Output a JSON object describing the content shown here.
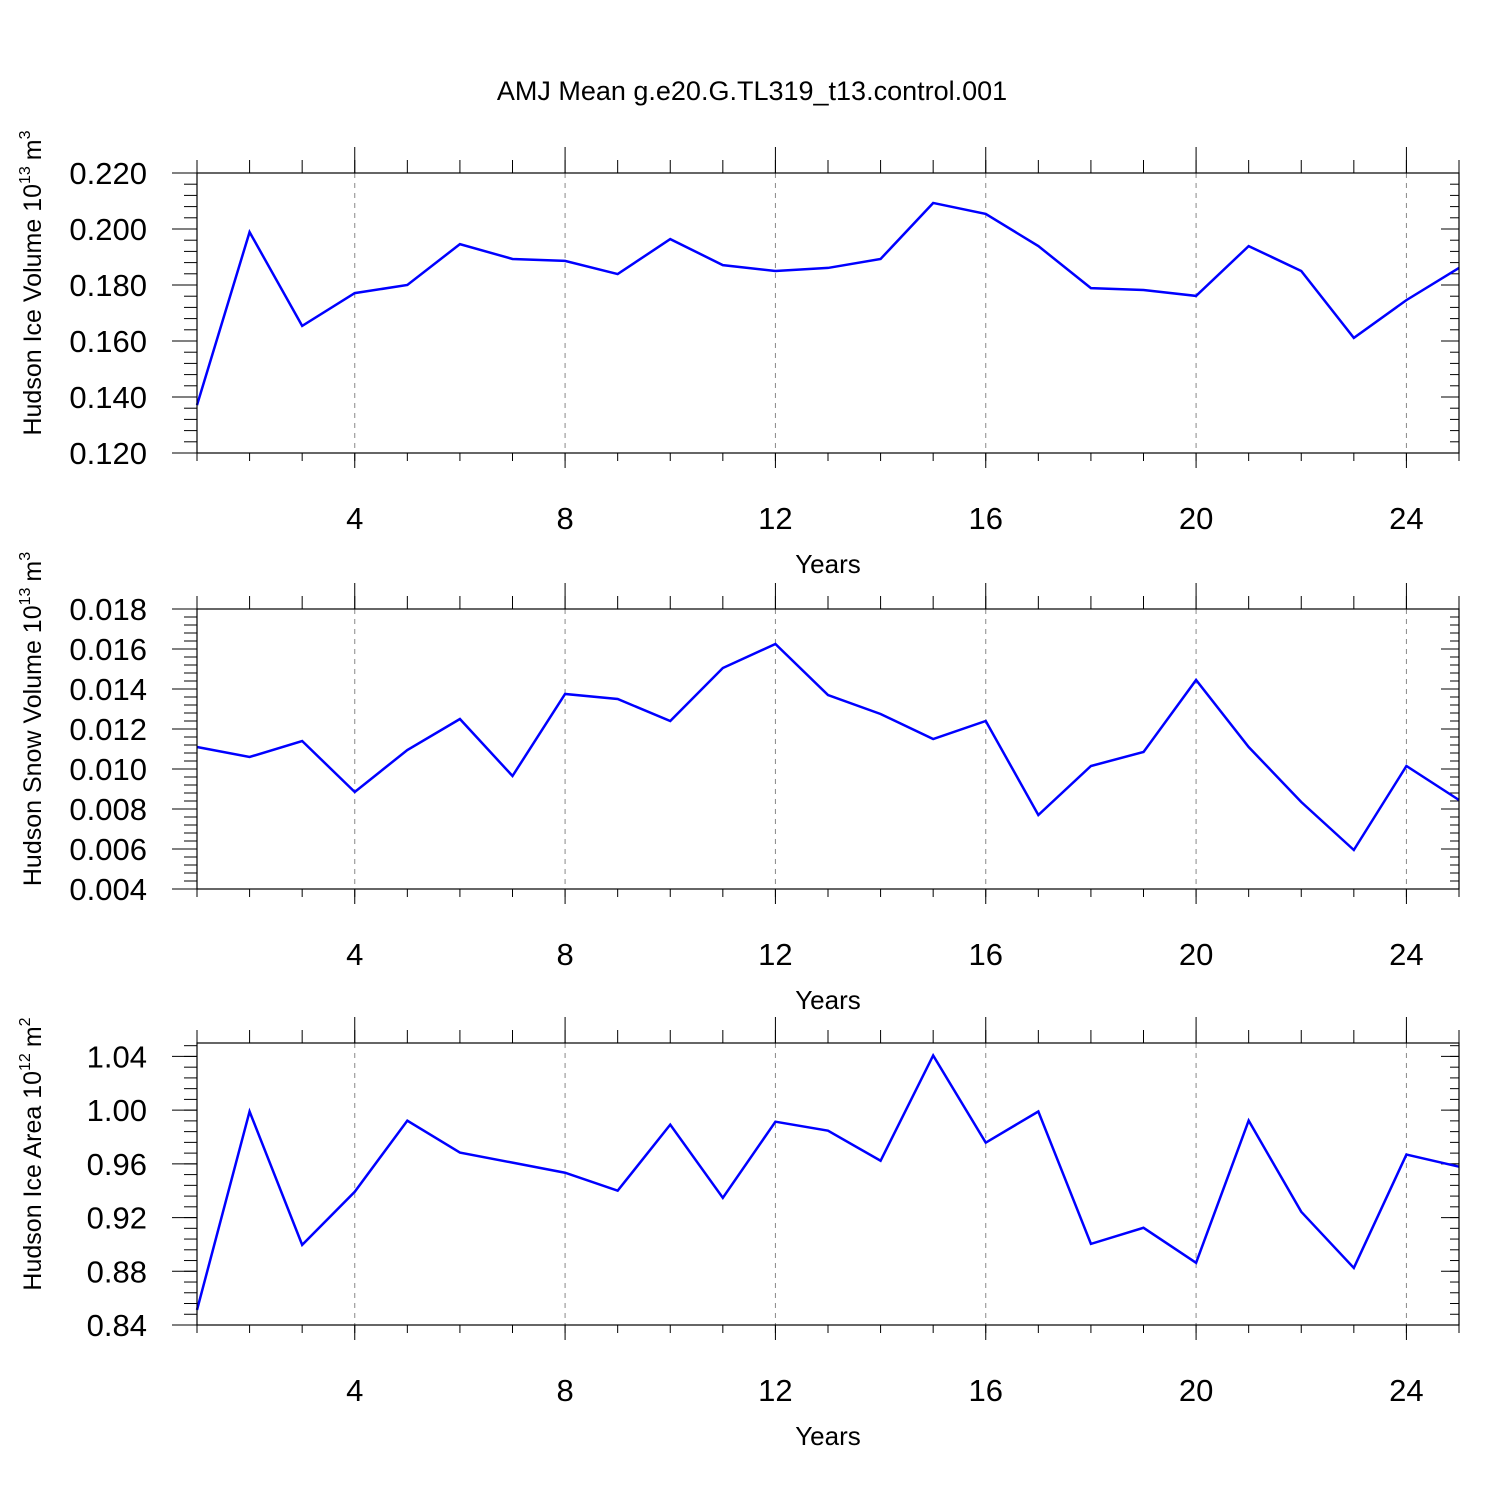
{
  "chart_data": [
    {
      "type": "line",
      "title": "AMJ Mean g.e20.G.TL319_t13.control.001",
      "ylabel": "Hudson Ice Volume 10",
      "ylabel_power": "13",
      "ylabel_unit": "m",
      "ylabel_unit_power": "3",
      "xlabel": "Years",
      "x": [
        1,
        2,
        3,
        4,
        5,
        6,
        7,
        8,
        9,
        10,
        11,
        12,
        13,
        14,
        15,
        16,
        17,
        18,
        19,
        20,
        21,
        22,
        23,
        24,
        25
      ],
      "series": [
        {
          "color": "#0000ff",
          "values": [
            0.1371,
            0.1989,
            0.1654,
            0.1771,
            0.18,
            0.1946,
            0.1893,
            0.1886,
            0.1839,
            0.1964,
            0.1871,
            0.185,
            0.1861,
            0.1893,
            0.2093,
            0.2054,
            0.1939,
            0.1789,
            0.1782,
            0.1761,
            0.1939,
            0.185,
            0.1611,
            0.1746,
            0.1861
          ]
        }
      ],
      "xlim": [
        1,
        25
      ],
      "xticks": [
        4,
        8,
        12,
        16,
        20,
        24
      ],
      "ylim": [
        0.12,
        0.22
      ],
      "yticks": [
        {
          "value": 0.12,
          "label": "0.120"
        },
        {
          "value": 0.14,
          "label": "0.140"
        },
        {
          "value": 0.16,
          "label": "0.160"
        },
        {
          "value": 0.18,
          "label": "0.180"
        },
        {
          "value": 0.2,
          "label": "0.200"
        },
        {
          "value": 0.22,
          "label": "0.220"
        }
      ],
      "grid": true
    },
    {
      "type": "line",
      "ylabel": "Hudson Snow Volume 10",
      "ylabel_power": "13",
      "ylabel_unit": "m",
      "ylabel_unit_power": "3",
      "xlabel": "Years",
      "x": [
        1,
        2,
        3,
        4,
        5,
        6,
        7,
        8,
        9,
        10,
        11,
        12,
        13,
        14,
        15,
        16,
        17,
        18,
        19,
        20,
        21,
        22,
        23,
        24,
        25
      ],
      "series": [
        {
          "color": "#0000ff",
          "values": [
            0.0111,
            0.0106,
            0.0114,
            0.00885,
            0.01095,
            0.0125,
            0.00965,
            0.01375,
            0.0135,
            0.0124,
            0.01505,
            0.01625,
            0.0137,
            0.01275,
            0.0115,
            0.0124,
            0.0077,
            0.01015,
            0.01085,
            0.01445,
            0.0111,
            0.00835,
            0.00595,
            0.01015,
            0.00845
          ]
        }
      ],
      "xlim": [
        1,
        25
      ],
      "xticks": [
        4,
        8,
        12,
        16,
        20,
        24
      ],
      "ylim": [
        0.004,
        0.018
      ],
      "yticks": [
        {
          "value": 0.004,
          "label": "0.004"
        },
        {
          "value": 0.006,
          "label": "0.006"
        },
        {
          "value": 0.008,
          "label": "0.008"
        },
        {
          "value": 0.01,
          "label": "0.010"
        },
        {
          "value": 0.012,
          "label": "0.012"
        },
        {
          "value": 0.014,
          "label": "0.014"
        },
        {
          "value": 0.016,
          "label": "0.016"
        },
        {
          "value": 0.018,
          "label": "0.018"
        }
      ],
      "grid": true
    },
    {
      "type": "line",
      "ylabel": "Hudson Ice Area 10",
      "ylabel_power": "12",
      "ylabel_unit": "m",
      "ylabel_unit_power": "2",
      "xlabel": "Years",
      "x": [
        1,
        2,
        3,
        4,
        5,
        6,
        7,
        8,
        9,
        10,
        11,
        12,
        13,
        14,
        15,
        16,
        17,
        18,
        19,
        20,
        21,
        22,
        23,
        24,
        25
      ],
      "series": [
        {
          "color": "#0000ff",
          "values": [
            0.8512,
            0.999,
            0.8997,
            0.9392,
            0.9922,
            0.9684,
            0.9609,
            0.9534,
            0.94,
            0.9892,
            0.9347,
            0.9914,
            0.9847,
            0.9623,
            1.0407,
            0.9758,
            0.999,
            0.9004,
            0.9124,
            0.8863,
            0.9922,
            0.9243,
            0.8825,
            0.9669,
            0.9579
          ]
        }
      ],
      "xlim": [
        1,
        25
      ],
      "xticks": [
        4,
        8,
        12,
        16,
        20,
        24
      ],
      "ylim": [
        0.84,
        1.05
      ],
      "yticks": [
        {
          "value": 0.84,
          "label": "0.84"
        },
        {
          "value": 0.88,
          "label": "0.88"
        },
        {
          "value": 0.92,
          "label": "0.92"
        },
        {
          "value": 0.96,
          "label": "0.96"
        },
        {
          "value": 1.0,
          "label": "1.00"
        },
        {
          "value": 1.04,
          "label": "1.04"
        }
      ],
      "grid": true
    }
  ]
}
